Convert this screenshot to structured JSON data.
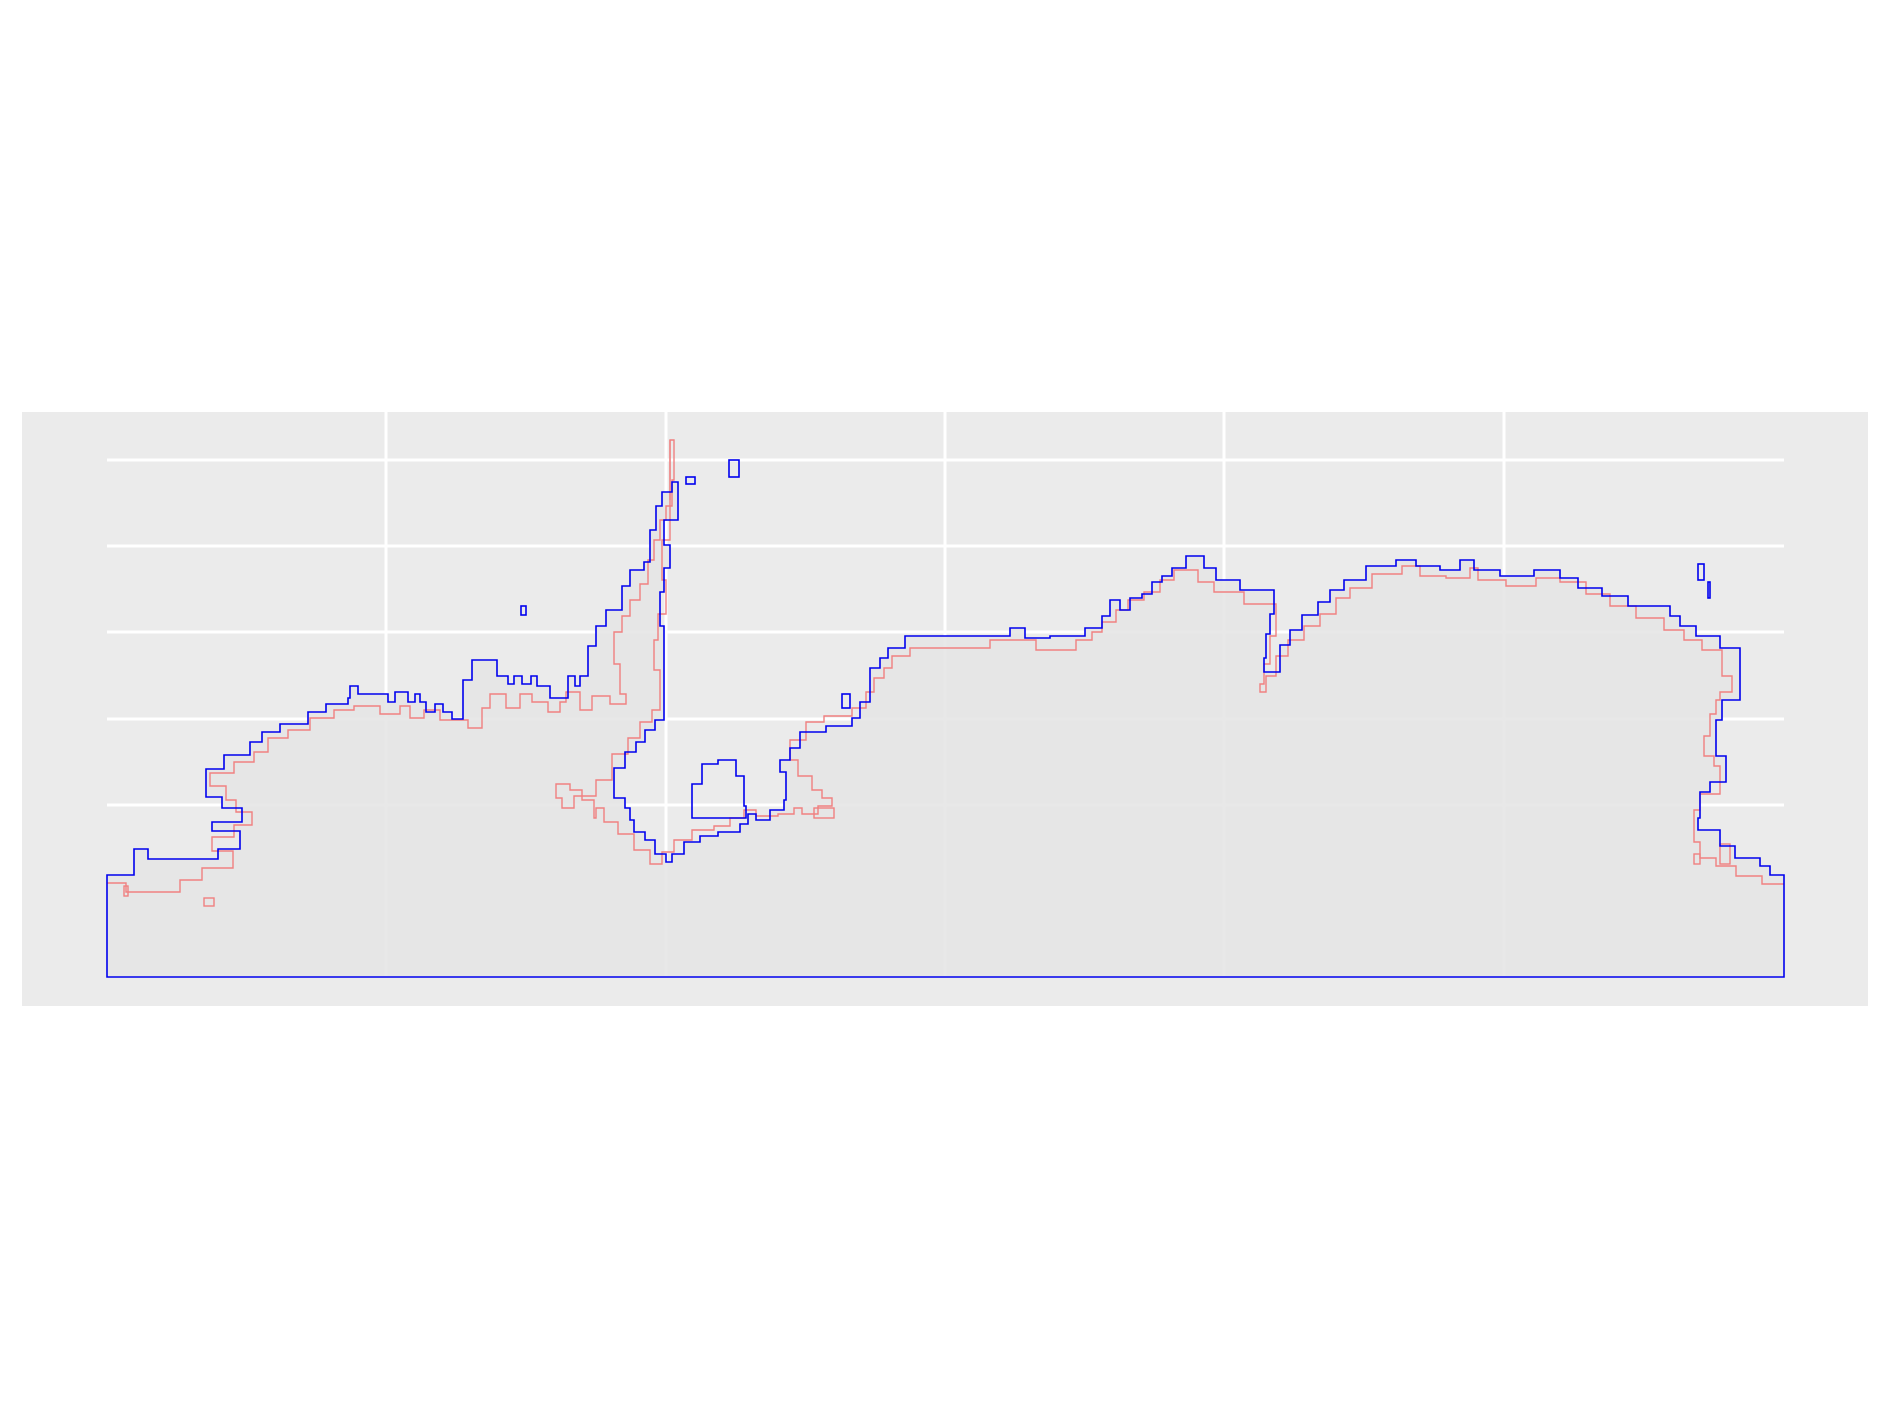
{
  "colors": {
    "page_background": "#ffffff",
    "panel_background": "#ebebeb",
    "gridline": "#ffffff",
    "fill": "#e6e6e6",
    "outline_primary": "#0000ee",
    "outline_secondary": "#f08080"
  },
  "panel": {
    "grid": true,
    "axis_ticks_shown": false,
    "axis_labels_shown": false,
    "legend_shown": false
  },
  "layers": [
    {
      "color": "#0000ee",
      "style": "step-outline"
    },
    {
      "color": "#f08080",
      "style": "step-outline"
    }
  ]
}
